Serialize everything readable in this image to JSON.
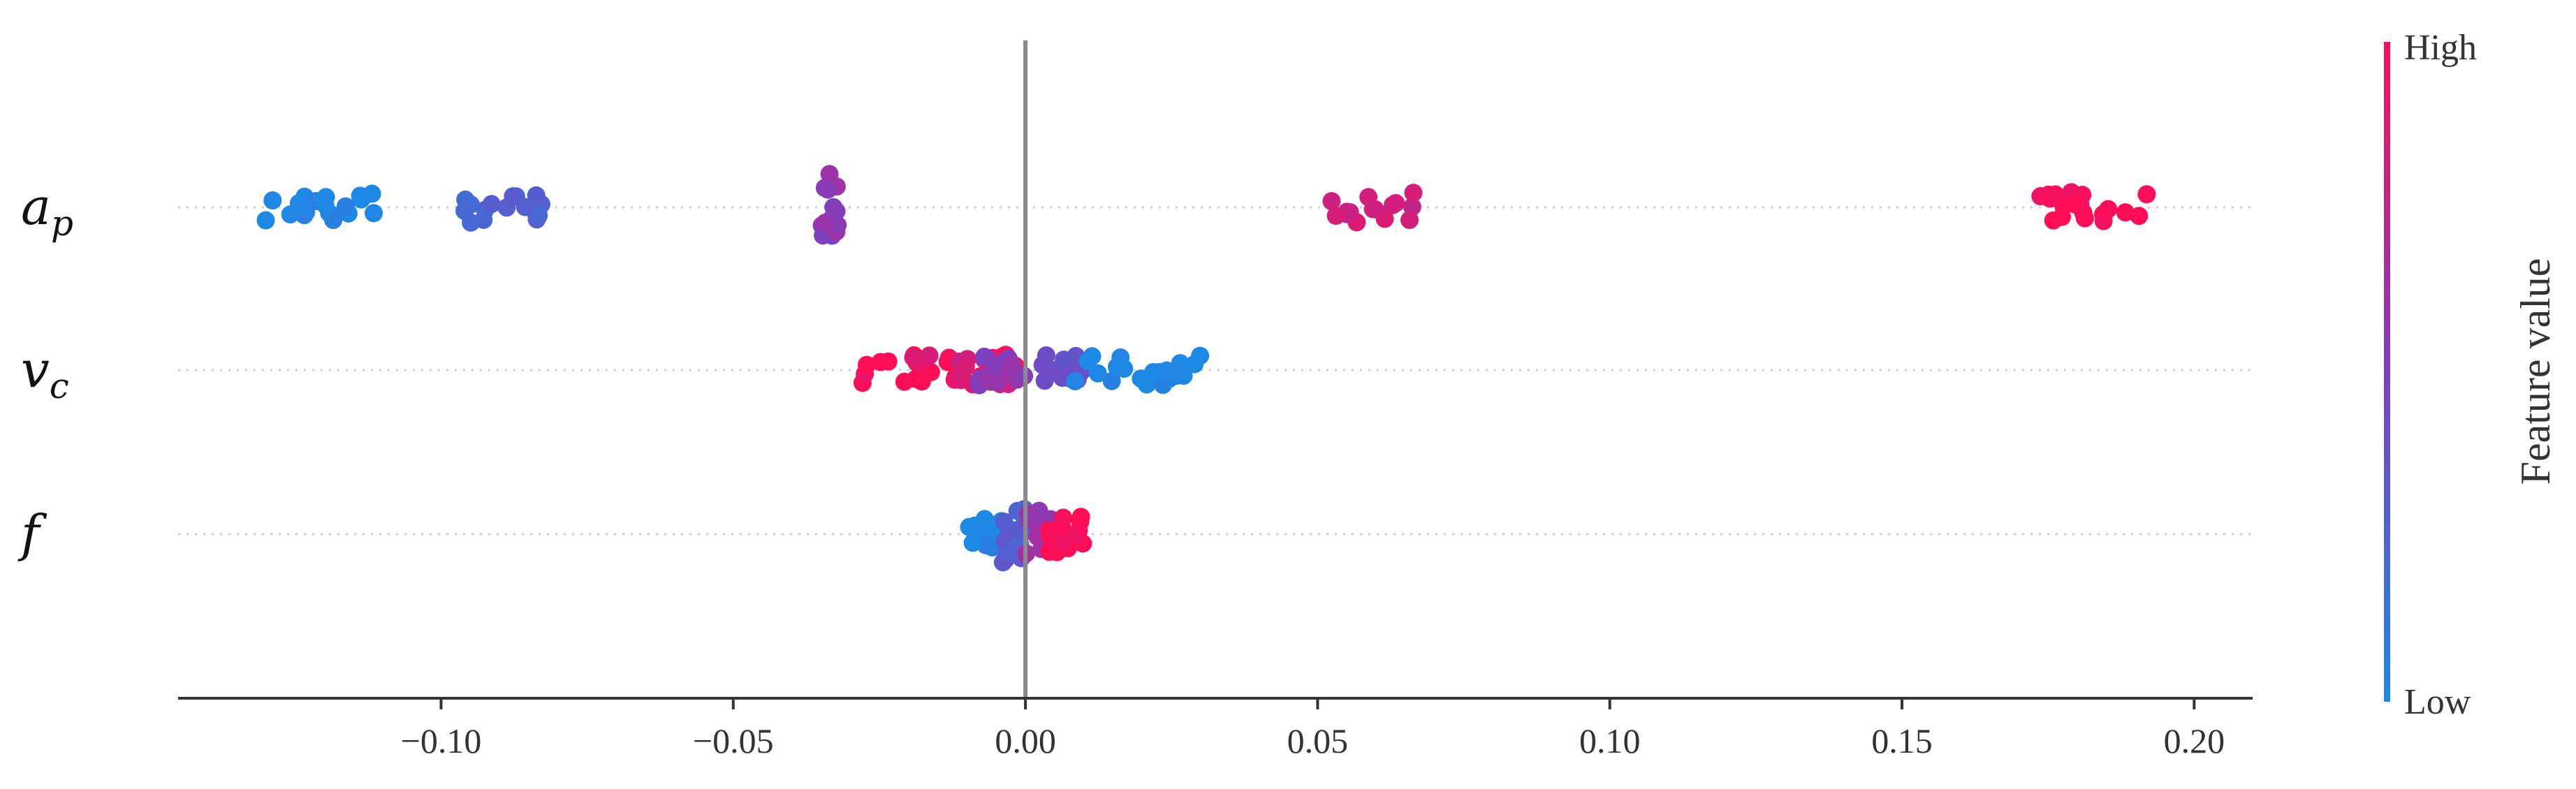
{
  "chart_data": {
    "type": "scatter",
    "subtype": "shap-beeswarm",
    "xlim": [
      -0.145,
      0.21
    ],
    "x_ticks": [
      -0.1,
      -0.05,
      0.0,
      0.05,
      0.1,
      0.15,
      0.2
    ],
    "x_tick_labels": [
      "−0.10",
      "−0.05",
      "0.00",
      "0.05",
      "0.10",
      "0.15",
      "0.20"
    ],
    "zero_line": 0.0,
    "colorbar": {
      "title": "Feature value",
      "high_label": "High",
      "low_label": "Low",
      "low_color": "#1e88e5",
      "high_color": "#ff0d57"
    },
    "features": [
      {
        "name": "a",
        "subscript": "p",
        "clusters": [
          {
            "x_min": -0.13,
            "x_max": -0.11,
            "value": 0.0
          },
          {
            "x_min": -0.096,
            "x_max": -0.082,
            "value": 0.25
          },
          {
            "x_min": -0.035,
            "x_max": -0.032,
            "value": 0.55
          },
          {
            "x_min": 0.052,
            "x_max": 0.067,
            "value": 0.8
          },
          {
            "x_min": 0.173,
            "x_max": 0.192,
            "value": 1.0
          }
        ]
      },
      {
        "name": "v",
        "subscript": "c",
        "clusters": [
          {
            "x_min": -0.031,
            "x_max": -0.001,
            "value": 1.0
          },
          {
            "x_min": -0.02,
            "x_max": -0.002,
            "value": 0.85
          },
          {
            "x_min": -0.008,
            "x_max": 0.0,
            "value": 0.55
          },
          {
            "x_min": 0.002,
            "x_max": 0.01,
            "value": 0.4
          },
          {
            "x_min": 0.008,
            "x_max": 0.03,
            "value": 0.0
          }
        ]
      },
      {
        "name": "f",
        "subscript": "",
        "clusters": [
          {
            "x_min": -0.01,
            "x_max": -0.003,
            "value": 0.0
          },
          {
            "x_min": -0.004,
            "x_max": 0.0,
            "value": 0.3
          },
          {
            "x_min": 0.0,
            "x_max": 0.005,
            "value": 0.6
          },
          {
            "x_min": 0.004,
            "x_max": 0.01,
            "value": 1.0
          }
        ]
      }
    ]
  }
}
